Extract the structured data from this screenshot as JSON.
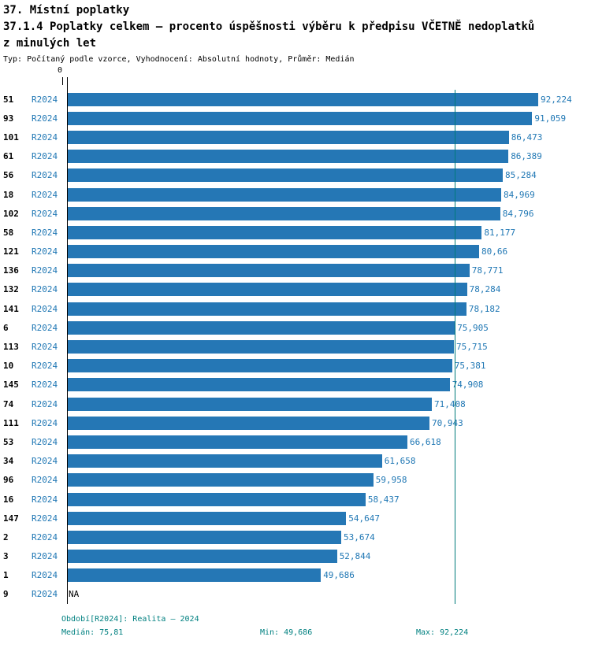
{
  "header": {
    "line1": "37. Místní poplatky",
    "line2": "37.1.4 Poplatky celkem – procento úspěšnosti výběru k předpisu VČETNĚ nedoplatků",
    "line3": "z minulých let",
    "subtitle": "Typ: Počítaný podle vzorce, Vyhodnocení: Absolutní hodnoty, Průměr: Medián"
  },
  "chart_data": {
    "type": "bar",
    "orientation": "horizontal",
    "zero_label": "0",
    "xlim": [
      0,
      92.224
    ],
    "median": 75.81,
    "legend": "R2024",
    "rows": [
      {
        "id": "51",
        "period": "R2024",
        "value": 92.224,
        "label": "92,224"
      },
      {
        "id": "93",
        "period": "R2024",
        "value": 91.059,
        "label": "91,059"
      },
      {
        "id": "101",
        "period": "R2024",
        "value": 86.473,
        "label": "86,473"
      },
      {
        "id": "61",
        "period": "R2024",
        "value": 86.389,
        "label": "86,389"
      },
      {
        "id": "56",
        "period": "R2024",
        "value": 85.284,
        "label": "85,284"
      },
      {
        "id": "18",
        "period": "R2024",
        "value": 84.969,
        "label": "84,969"
      },
      {
        "id": "102",
        "period": "R2024",
        "value": 84.796,
        "label": "84,796"
      },
      {
        "id": "58",
        "period": "R2024",
        "value": 81.177,
        "label": "81,177"
      },
      {
        "id": "121",
        "period": "R2024",
        "value": 80.66,
        "label": "80,66"
      },
      {
        "id": "136",
        "period": "R2024",
        "value": 78.771,
        "label": "78,771"
      },
      {
        "id": "132",
        "period": "R2024",
        "value": 78.284,
        "label": "78,284"
      },
      {
        "id": "141",
        "period": "R2024",
        "value": 78.182,
        "label": "78,182"
      },
      {
        "id": "6",
        "period": "R2024",
        "value": 75.905,
        "label": "75,905"
      },
      {
        "id": "113",
        "period": "R2024",
        "value": 75.715,
        "label": "75,715"
      },
      {
        "id": "10",
        "period": "R2024",
        "value": 75.381,
        "label": "75,381"
      },
      {
        "id": "145",
        "period": "R2024",
        "value": 74.908,
        "label": "74,908"
      },
      {
        "id": "74",
        "period": "R2024",
        "value": 71.408,
        "label": "71,408"
      },
      {
        "id": "111",
        "period": "R2024",
        "value": 70.943,
        "label": "70,943"
      },
      {
        "id": "53",
        "period": "R2024",
        "value": 66.618,
        "label": "66,618"
      },
      {
        "id": "34",
        "period": "R2024",
        "value": 61.658,
        "label": "61,658"
      },
      {
        "id": "96",
        "period": "R2024",
        "value": 59.958,
        "label": "59,958"
      },
      {
        "id": "16",
        "period": "R2024",
        "value": 58.437,
        "label": "58,437"
      },
      {
        "id": "147",
        "period": "R2024",
        "value": 54.647,
        "label": "54,647"
      },
      {
        "id": "2",
        "period": "R2024",
        "value": 53.674,
        "label": "53,674"
      },
      {
        "id": "3",
        "period": "R2024",
        "value": 52.844,
        "label": "52,844"
      },
      {
        "id": "1",
        "period": "R2024",
        "value": 49.686,
        "label": "49,686"
      },
      {
        "id": "9",
        "period": "R2024",
        "value": null,
        "label": "NA"
      }
    ]
  },
  "footer": {
    "period": "Období[R2024]: Realita – 2024",
    "median": "Medián: 75,81",
    "min": "Min: 49,686",
    "max": "Max: 92,224"
  },
  "colors": {
    "bar": "#2577b5",
    "value_text": "#1f77b4",
    "period_text": "#1f77b4",
    "footer_text": "#008080",
    "median_line": "#007a7a"
  }
}
